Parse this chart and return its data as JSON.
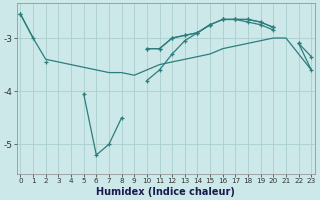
{
  "xlabel": "Humidex (Indice chaleur)",
  "ylabel": "",
  "x": [
    0,
    1,
    2,
    3,
    4,
    5,
    6,
    7,
    8,
    9,
    10,
    11,
    12,
    13,
    14,
    15,
    16,
    17,
    18,
    19,
    20,
    21,
    22,
    23
  ],
  "line_top": [
    null,
    null,
    null,
    null,
    null,
    null,
    null,
    null,
    null,
    null,
    -3.2,
    -3.2,
    -3.0,
    -2.95,
    -2.9,
    -2.75,
    -2.65,
    -2.65,
    -2.65,
    -2.7,
    -2.8,
    null,
    null,
    null
  ],
  "line_max": [
    -2.55,
    -3.0,
    null,
    null,
    null,
    null,
    null,
    null,
    null,
    null,
    -3.2,
    -3.2,
    -3.0,
    -2.95,
    -2.9,
    -2.75,
    -2.65,
    -2.65,
    -2.65,
    -2.7,
    -2.8,
    null,
    -3.1,
    -3.35
  ],
  "line_mean": [
    -2.55,
    -3.0,
    -3.4,
    -3.45,
    -3.5,
    -3.55,
    -3.6,
    -3.65,
    -3.65,
    -3.7,
    -3.6,
    -3.5,
    -3.45,
    -3.4,
    -3.35,
    -3.3,
    -3.2,
    -3.15,
    -3.1,
    -3.05,
    -3.0,
    -3.0,
    -3.3,
    -3.6
  ],
  "line_zigzag": [
    -2.55,
    null,
    -3.45,
    null,
    null,
    -4.05,
    -5.2,
    -5.0,
    -4.5,
    null,
    -3.8,
    -3.6,
    -3.3,
    -3.05,
    -2.9,
    -2.75,
    null,
    null,
    null,
    null,
    null,
    null,
    null,
    null
  ],
  "line_bot": [
    null,
    null,
    null,
    null,
    null,
    null,
    null,
    null,
    null,
    null,
    null,
    null,
    null,
    null,
    null,
    null,
    -2.65,
    -2.65,
    -2.7,
    -2.75,
    -2.85,
    null,
    -3.1,
    -3.6
  ],
  "bg_color": "#cce8e8",
  "line_color": "#2d7d7d",
  "grid_color": "#aad0d0",
  "ylim": [
    -5.55,
    -2.35
  ],
  "yticks": [
    -5,
    -4,
    -3
  ],
  "xlim": [
    -0.3,
    23.3
  ]
}
